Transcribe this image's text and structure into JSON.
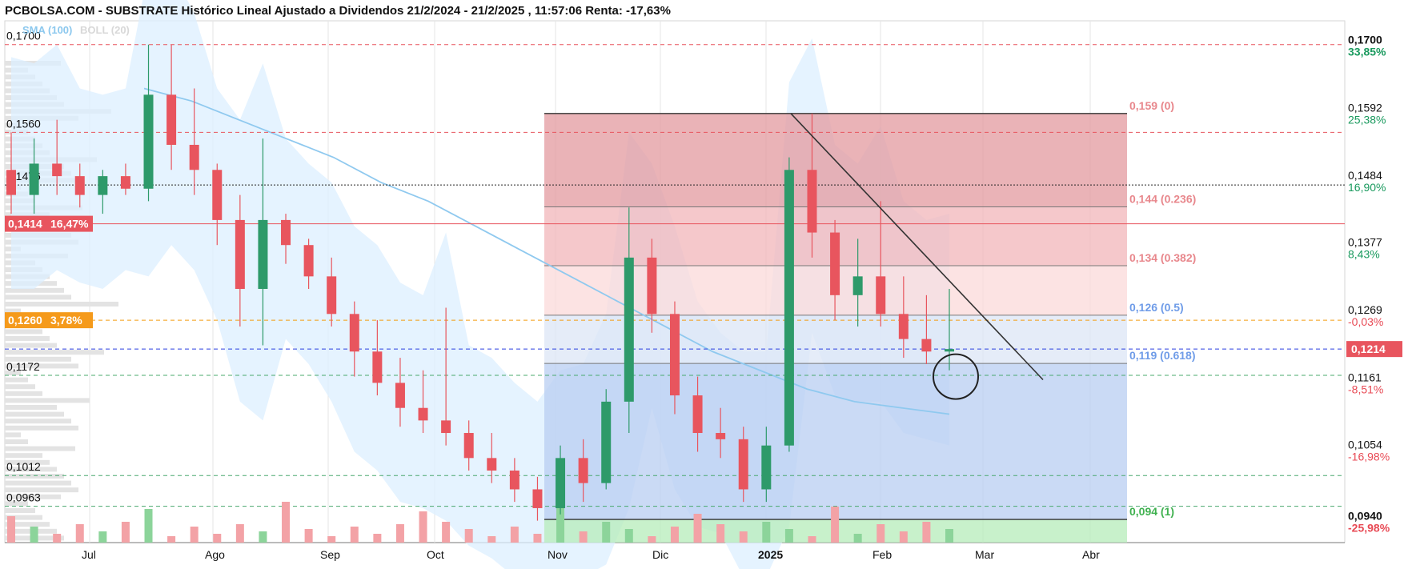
{
  "title": "PCBOLSA.COM - SUBSTRATE Histórico Lineal Ajustado a Dividendos 21/2/2024 - 21/2/2025 , 11:57:06 Renta: -17,63%",
  "legend": {
    "sma": "SMA (100)",
    "boll": "BOLL (20)"
  },
  "colors": {
    "up": "#2e9a6a",
    "down": "#e8555e",
    "sma": "#8fc9ef",
    "boll_fill": "#dcefff",
    "fib_red": "#e8878c",
    "fib_blue": "#6f9ce8",
    "fib_green": "#b6ecb9",
    "current": "#e8555e",
    "avg_line": "#f39c12"
  },
  "chart_data": {
    "type": "candlestick",
    "x_labels": [
      "Jul",
      "Ago",
      "Sep",
      "Oct",
      "Nov",
      "Dic",
      "2025",
      "Feb",
      "Mar",
      "Abr"
    ],
    "y_range": [
      0.0905,
      0.1738
    ],
    "right_axis": [
      {
        "price": "0,1700",
        "pct": "33,85%",
        "pct_color": "#1a9a5e"
      },
      {
        "price": "0,1592",
        "pct": "25,38%",
        "pct_color": "#1a9a5e"
      },
      {
        "price": "0,1484",
        "pct": "16,90%",
        "pct_color": "#1a9a5e"
      },
      {
        "price": "0,1377",
        "pct": "8,43%",
        "pct_color": "#1a9a5e"
      },
      {
        "price": "0,1269",
        "pct": "-0,03%",
        "pct_color": "#e84a55"
      },
      {
        "price": "0,1161",
        "pct": "-8,51%",
        "pct_color": "#e84a55"
      },
      {
        "price": "0,1054",
        "pct": "-16,98%",
        "pct_color": "#e84a55"
      },
      {
        "price": "0,0940",
        "pct": "-25,98%",
        "pct_color": "#e84a55"
      }
    ],
    "left_levels": [
      {
        "label": "0,1700",
        "value": 0.17,
        "line": "red-dash"
      },
      {
        "label": "0,1560",
        "value": 0.156,
        "line": "red-dash"
      },
      {
        "label": "0,1476",
        "value": 0.1476,
        "line": "dotted"
      },
      {
        "label": "0,1172",
        "value": 0.1172,
        "line": "green-dash"
      },
      {
        "label": "0,1012",
        "value": 0.1012,
        "line": "green-dash"
      },
      {
        "label": "0,0963",
        "value": 0.0963,
        "line": "green-dash"
      }
    ],
    "badges": [
      {
        "text": "0,1414",
        "pct": "16,47%",
        "value": 0.1414,
        "color": "#e8555e"
      },
      {
        "text": "0,1260",
        "pct": "3,78%",
        "value": 0.126,
        "color": "#f59a1b"
      }
    ],
    "current_price": {
      "text": "0,1214",
      "value": 0.1214
    },
    "fibonacci": [
      {
        "label": "0,159 (0)",
        "value": 0.159
      },
      {
        "label": "0,144 (0.236)",
        "value": 0.1441
      },
      {
        "label": "0,134 (0.382)",
        "value": 0.1347
      },
      {
        "label": "0,126 (0.5)",
        "value": 0.1268
      },
      {
        "label": "0,119 (0.618)",
        "value": 0.1191
      },
      {
        "label": "0,094 (1)",
        "value": 0.0942
      }
    ],
    "candles_weekly_approx": [
      {
        "o": 0.15,
        "h": 0.156,
        "l": 0.143,
        "c": 0.146
      },
      {
        "o": 0.146,
        "h": 0.155,
        "l": 0.143,
        "c": 0.151
      },
      {
        "o": 0.151,
        "h": 0.158,
        "l": 0.146,
        "c": 0.149
      },
      {
        "o": 0.149,
        "h": 0.151,
        "l": 0.144,
        "c": 0.146
      },
      {
        "o": 0.146,
        "h": 0.15,
        "l": 0.143,
        "c": 0.149
      },
      {
        "o": 0.149,
        "h": 0.151,
        "l": 0.146,
        "c": 0.147
      },
      {
        "o": 0.147,
        "h": 0.17,
        "l": 0.145,
        "c": 0.162
      },
      {
        "o": 0.162,
        "h": 0.17,
        "l": 0.15,
        "c": 0.154
      },
      {
        "o": 0.154,
        "h": 0.163,
        "l": 0.146,
        "c": 0.15
      },
      {
        "o": 0.15,
        "h": 0.151,
        "l": 0.138,
        "c": 0.142
      },
      {
        "o": 0.142,
        "h": 0.146,
        "l": 0.125,
        "c": 0.131
      },
      {
        "o": 0.131,
        "h": 0.155,
        "l": 0.122,
        "c": 0.142
      },
      {
        "o": 0.142,
        "h": 0.143,
        "l": 0.135,
        "c": 0.138
      },
      {
        "o": 0.138,
        "h": 0.139,
        "l": 0.131,
        "c": 0.133
      },
      {
        "o": 0.133,
        "h": 0.136,
        "l": 0.125,
        "c": 0.127
      },
      {
        "o": 0.127,
        "h": 0.129,
        "l": 0.117,
        "c": 0.121
      },
      {
        "o": 0.121,
        "h": 0.126,
        "l": 0.114,
        "c": 0.116
      },
      {
        "o": 0.116,
        "h": 0.12,
        "l": 0.109,
        "c": 0.112
      },
      {
        "o": 0.112,
        "h": 0.118,
        "l": 0.108,
        "c": 0.11
      },
      {
        "o": 0.11,
        "h": 0.128,
        "l": 0.106,
        "c": 0.108
      },
      {
        "o": 0.108,
        "h": 0.11,
        "l": 0.102,
        "c": 0.104
      },
      {
        "o": 0.104,
        "h": 0.108,
        "l": 0.1,
        "c": 0.102
      },
      {
        "o": 0.102,
        "h": 0.104,
        "l": 0.097,
        "c": 0.099
      },
      {
        "o": 0.099,
        "h": 0.101,
        "l": 0.094,
        "c": 0.096
      },
      {
        "o": 0.096,
        "h": 0.106,
        "l": 0.095,
        "c": 0.104
      },
      {
        "o": 0.104,
        "h": 0.107,
        "l": 0.097,
        "c": 0.1
      },
      {
        "o": 0.1,
        "h": 0.115,
        "l": 0.099,
        "c": 0.113
      },
      {
        "o": 0.113,
        "h": 0.144,
        "l": 0.108,
        "c": 0.136
      },
      {
        "o": 0.136,
        "h": 0.139,
        "l": 0.124,
        "c": 0.127
      },
      {
        "o": 0.127,
        "h": 0.129,
        "l": 0.111,
        "c": 0.114
      },
      {
        "o": 0.114,
        "h": 0.117,
        "l": 0.105,
        "c": 0.108
      },
      {
        "o": 0.108,
        "h": 0.112,
        "l": 0.104,
        "c": 0.107
      },
      {
        "o": 0.107,
        "h": 0.109,
        "l": 0.097,
        "c": 0.099
      },
      {
        "o": 0.099,
        "h": 0.109,
        "l": 0.097,
        "c": 0.106
      },
      {
        "o": 0.106,
        "h": 0.152,
        "l": 0.105,
        "c": 0.15
      },
      {
        "o": 0.15,
        "h": 0.159,
        "l": 0.136,
        "c": 0.14
      },
      {
        "o": 0.14,
        "h": 0.142,
        "l": 0.126,
        "c": 0.13
      },
      {
        "o": 0.13,
        "h": 0.139,
        "l": 0.125,
        "c": 0.133
      },
      {
        "o": 0.133,
        "h": 0.145,
        "l": 0.125,
        "c": 0.127
      },
      {
        "o": 0.127,
        "h": 0.133,
        "l": 0.12,
        "c": 0.123
      },
      {
        "o": 0.123,
        "h": 0.13,
        "l": 0.119,
        "c": 0.121
      },
      {
        "o": 0.121,
        "h": 0.131,
        "l": 0.118,
        "c": 0.1214
      }
    ]
  }
}
